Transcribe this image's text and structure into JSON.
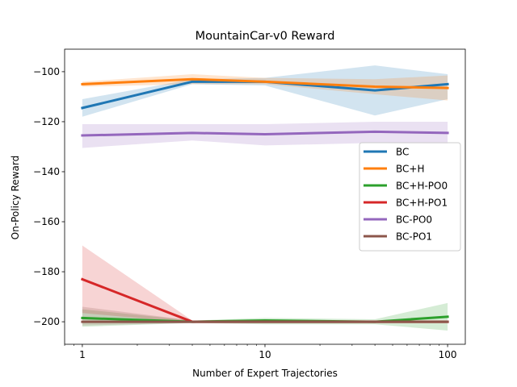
{
  "chart_data": {
    "type": "line",
    "title": "MountainCar-v0 Reward",
    "xlabel": "Number of Expert Trajectories",
    "ylabel": "On-Policy Reward",
    "xscale": "log",
    "xlim": [
      0.8,
      125
    ],
    "ylim": [
      -209,
      -91
    ],
    "xticks": [
      {
        "value": 1,
        "label": "1"
      },
      {
        "value": 10,
        "label": "10"
      },
      {
        "value": 100,
        "label": "100"
      }
    ],
    "yticks": [
      {
        "value": -100,
        "label": "−100"
      },
      {
        "value": -120,
        "label": "−120"
      },
      {
        "value": -140,
        "label": "−140"
      },
      {
        "value": -160,
        "label": "−160"
      },
      {
        "value": -180,
        "label": "−180"
      },
      {
        "value": -200,
        "label": "−200"
      }
    ],
    "grid": false,
    "legend_position": "center-right",
    "x": [
      1,
      4,
      10,
      40,
      100
    ],
    "series": [
      {
        "name": "BC",
        "color": "#1f77b4",
        "values": [
          -114.5,
          -104,
          -104,
          -107.5,
          -105
        ],
        "lower": [
          -118,
          -105,
          -105.5,
          -117.5,
          -111
        ],
        "upper": [
          -111,
          -103,
          -102.5,
          -97.5,
          -101
        ]
      },
      {
        "name": "BC+H",
        "color": "#ff7f0e",
        "values": [
          -105,
          -103,
          -104,
          -106,
          -106.5
        ],
        "lower": [
          -106,
          -105,
          -105,
          -109,
          -111.5
        ],
        "upper": [
          -104,
          -101,
          -102.5,
          -103,
          -101.5
        ]
      },
      {
        "name": "BC+H-PO0",
        "color": "#2ca02c",
        "values": [
          -198.5,
          -200,
          -199.5,
          -200,
          -198
        ],
        "lower": [
          -202,
          -200.5,
          -201,
          -201,
          -203.5
        ],
        "upper": [
          -195,
          -199.5,
          -198.5,
          -199,
          -192.5
        ]
      },
      {
        "name": "BC+H-PO1",
        "color": "#d62728",
        "values": [
          -183,
          -200,
          -200,
          -200,
          -200
        ],
        "lower": [
          -196.5,
          -200.5,
          -200.5,
          -200.5,
          -200.5
        ],
        "upper": [
          -169.5,
          -199.5,
          -199.5,
          -199.5,
          -199.5
        ]
      },
      {
        "name": "BC-PO0",
        "color": "#9467bd",
        "values": [
          -125.5,
          -124.5,
          -125,
          -124,
          -124.5
        ],
        "lower": [
          -130.5,
          -127.5,
          -129.5,
          -128.5,
          -129
        ],
        "upper": [
          -121,
          -121,
          -121,
          -120,
          -120
        ]
      },
      {
        "name": "BC-PO1",
        "color": "#8c564b",
        "values": [
          -200,
          -200,
          -200,
          -200,
          -200
        ],
        "lower": [
          -201.5,
          -200.5,
          -200.5,
          -200.5,
          -200.5
        ],
        "upper": [
          -194,
          -199.5,
          -199.5,
          -199.5,
          -199.5
        ]
      }
    ]
  }
}
